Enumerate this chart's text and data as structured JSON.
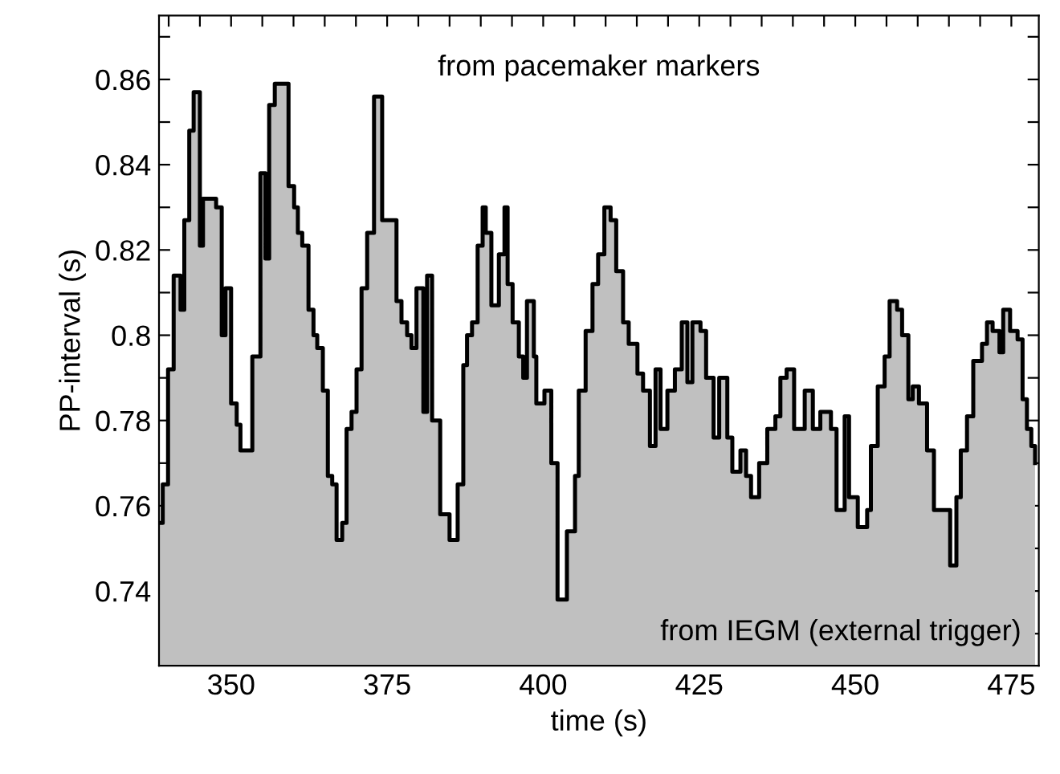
{
  "chart_data": {
    "type": "step",
    "xlabel": "time (s)",
    "ylabel": "PP-interval (s)",
    "x": [
      338.45,
      339.05,
      339.9,
      340.8,
      341.9,
      342.5,
      343.3,
      344.0,
      345.0,
      345.5,
      347.6,
      348.5,
      349.1,
      350.0,
      350.9,
      351.5,
      353.4,
      354.7,
      355.5,
      356.1,
      357.0,
      359.2,
      360.1,
      360.7,
      361.4,
      362.4,
      363.2,
      363.8,
      364.7,
      365.5,
      366.2,
      366.9,
      367.8,
      368.5,
      369.3,
      370.1,
      370.9,
      371.8,
      372.9,
      374.2,
      376.5,
      377.3,
      378.2,
      378.9,
      379.7,
      380.8,
      381.4,
      382.2,
      383.5,
      385.0,
      386.3,
      387.2,
      387.8,
      388.6,
      389.5,
      390.3,
      390.8,
      391.7,
      392.9,
      393.8,
      394.3,
      395.1,
      396.1,
      396.8,
      397.4,
      398.5,
      398.9,
      400.2,
      401.3,
      402.3,
      403.8,
      405.1,
      405.7,
      406.8,
      407.9,
      408.8,
      409.8,
      410.8,
      411.7,
      412.8,
      413.7,
      415.1,
      416.0,
      417.1,
      418.0,
      418.8,
      419.9,
      421.1,
      422.2,
      423.1,
      423.9,
      425.2,
      426.1,
      427.3,
      428.2,
      429.5,
      430.3,
      431.6,
      432.5,
      433.3,
      434.6,
      435.9,
      437.2,
      438.0,
      439.0,
      440.2,
      441.9,
      443.2,
      444.4,
      446.1,
      447.0,
      448.3,
      449.0,
      450.4,
      451.9,
      452.5,
      453.6,
      454.7,
      455.5,
      456.7,
      457.5,
      458.5,
      459.2,
      460.2,
      461.5,
      462.6,
      465.2,
      466.2,
      466.9,
      467.9,
      468.9,
      470.3,
      471.1,
      472.0,
      473.1,
      473.7,
      474.8,
      476.0,
      476.8,
      477.5,
      478.2,
      478.8
    ],
    "series": [
      {
        "color": "#000000",
        "values": [
          0.756,
          0.765,
          0.792,
          0.814,
          0.806,
          0.827,
          0.848,
          0.857,
          0.821,
          0.832,
          0.83,
          0.8,
          0.811,
          0.784,
          0.779,
          0.773,
          0.795,
          0.838,
          0.818,
          0.854,
          0.859,
          0.835,
          0.83,
          0.824,
          0.821,
          0.806,
          0.8,
          0.797,
          0.787,
          0.767,
          0.765,
          0.752,
          0.756,
          0.778,
          0.782,
          0.792,
          0.811,
          0.824,
          0.856,
          0.827,
          0.808,
          0.803,
          0.8,
          0.797,
          0.811,
          0.782,
          0.814,
          0.78,
          0.758,
          0.752,
          0.765,
          0.793,
          0.8,
          0.803,
          0.821,
          0.83,
          0.824,
          0.807,
          0.819,
          0.83,
          0.812,
          0.803,
          0.795,
          0.79,
          0.808,
          0.795,
          0.784,
          0.787,
          0.77,
          0.738,
          0.754,
          0.767,
          0.787,
          0.801,
          0.812,
          0.819,
          0.83,
          0.827,
          0.815,
          0.803,
          0.798,
          0.791,
          0.787,
          0.774,
          0.792,
          0.778,
          0.787,
          0.792,
          0.803,
          0.789,
          0.803,
          0.801,
          0.79,
          0.776,
          0.79,
          0.776,
          0.768,
          0.773,
          0.767,
          0.762,
          0.77,
          0.778,
          0.781,
          0.79,
          0.792,
          0.778,
          0.787,
          0.778,
          0.782,
          0.778,
          0.759,
          0.781,
          0.762,
          0.755,
          0.759,
          0.774,
          0.788,
          0.795,
          0.808,
          0.806,
          0.8,
          0.785,
          0.788,
          0.784,
          0.773,
          0.759,
          0.746,
          0.762,
          0.773,
          0.781,
          0.794,
          0.798,
          0.803,
          0.801,
          0.796,
          0.806,
          0.801,
          0.799,
          0.785,
          0.778,
          0.774,
          0.77
        ]
      },
      {
        "type": "area",
        "color": "#c0c0c0",
        "values": [
          0.756,
          0.765,
          0.792,
          0.814,
          0.806,
          0.827,
          0.848,
          0.857,
          0.821,
          0.832,
          0.83,
          0.8,
          0.811,
          0.784,
          0.779,
          0.773,
          0.795,
          0.838,
          0.818,
          0.854,
          0.859,
          0.835,
          0.83,
          0.824,
          0.821,
          0.806,
          0.8,
          0.797,
          0.787,
          0.767,
          0.765,
          0.752,
          0.756,
          0.778,
          0.782,
          0.792,
          0.811,
          0.824,
          0.856,
          0.827,
          0.808,
          0.803,
          0.8,
          0.797,
          0.811,
          0.782,
          0.814,
          0.78,
          0.758,
          0.752,
          0.765,
          0.793,
          0.8,
          0.803,
          0.821,
          0.83,
          0.824,
          0.807,
          0.819,
          0.83,
          0.812,
          0.803,
          0.795,
          0.79,
          0.808,
          0.795,
          0.784,
          0.787,
          0.77,
          0.738,
          0.754,
          0.767,
          0.787,
          0.801,
          0.812,
          0.819,
          0.83,
          0.827,
          0.815,
          0.803,
          0.798,
          0.791,
          0.787,
          0.774,
          0.792,
          0.778,
          0.787,
          0.792,
          0.803,
          0.789,
          0.803,
          0.801,
          0.79,
          0.776,
          0.79,
          0.776,
          0.768,
          0.773,
          0.767,
          0.762,
          0.77,
          0.778,
          0.781,
          0.79,
          0.792,
          0.778,
          0.787,
          0.778,
          0.782,
          0.778,
          0.759,
          0.781,
          0.762,
          0.755,
          0.759,
          0.774,
          0.788,
          0.795,
          0.808,
          0.806,
          0.8,
          0.785,
          0.788,
          0.784,
          0.773,
          0.759,
          0.746,
          0.762,
          0.773,
          0.781,
          0.794,
          0.798,
          0.803,
          0.801,
          0.796,
          0.806,
          0.801,
          0.799,
          0.785,
          0.778,
          0.774,
          0.77
        ]
      }
    ],
    "xlim": [
      338.45,
      479.4
    ],
    "ylim": [
      0.7225,
      0.875
    ],
    "xticks": [
      {
        "value": 340,
        "label": null
      },
      {
        "value": 345,
        "label": null
      },
      350,
      {
        "value": 355,
        "label": null
      },
      {
        "value": 360,
        "label": null
      },
      {
        "value": 365,
        "label": null
      },
      {
        "value": 370,
        "label": null
      },
      375,
      {
        "value": 380,
        "label": null
      },
      {
        "value": 385,
        "label": null
      },
      {
        "value": 390,
        "label": null
      },
      {
        "value": 395,
        "label": null
      },
      400,
      {
        "value": 405,
        "label": null
      },
      {
        "value": 410,
        "label": null
      },
      {
        "value": 415,
        "label": null
      },
      {
        "value": 420,
        "label": null
      },
      425,
      {
        "value": 430,
        "label": null
      },
      {
        "value": 435,
        "label": null
      },
      {
        "value": 440,
        "label": null
      },
      {
        "value": 445,
        "label": null
      },
      450,
      {
        "value": 455,
        "label": null
      },
      {
        "value": 460,
        "label": null
      },
      {
        "value": 465,
        "label": null
      },
      {
        "value": 470,
        "label": null
      },
      475
    ],
    "yticks": [
      {
        "value": 0.73,
        "label": null
      },
      0.74,
      {
        "value": 0.75,
        "label": null
      },
      0.76,
      {
        "value": 0.77,
        "label": null
      },
      0.78,
      {
        "value": 0.79,
        "label": null
      },
      0.8,
      {
        "value": 0.81,
        "label": null
      },
      0.82,
      {
        "value": 0.83,
        "label": null
      },
      0.84,
      {
        "value": 0.85,
        "label": null
      },
      0.86,
      {
        "value": 0.87,
        "label": null
      }
    ],
    "annotations": [
      "from pacemaker markers",
      "from IEGM (external trigger)"
    ],
    "grid": false
  }
}
